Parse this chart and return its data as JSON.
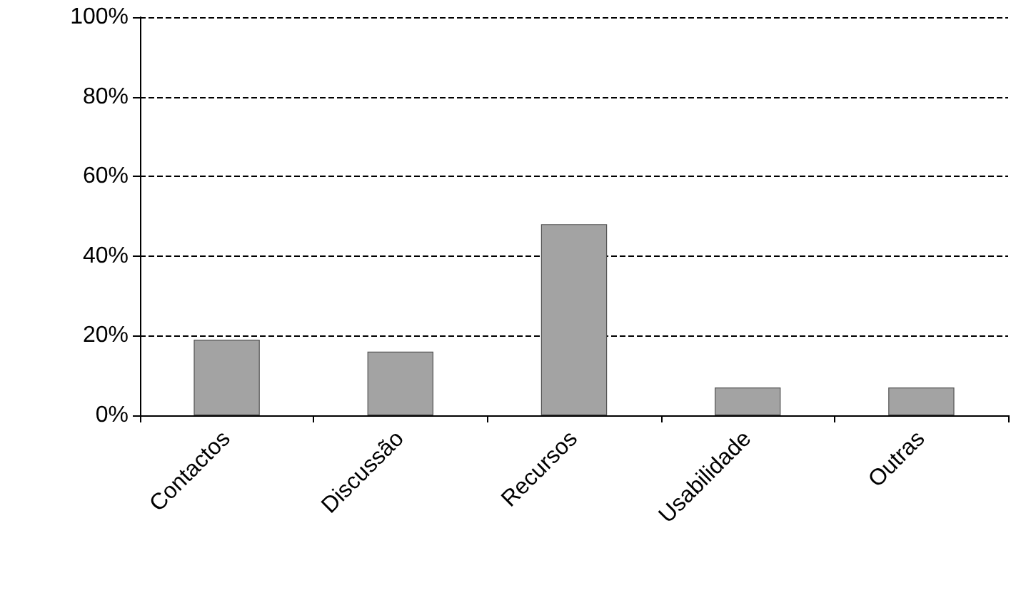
{
  "chart_data": {
    "type": "bar",
    "categories": [
      "Contactos",
      "Discussão",
      "Recursos",
      "Usabilidade",
      "Outras"
    ],
    "values": [
      19,
      16,
      48,
      7,
      7
    ],
    "color": "#a3a3a3",
    "ylim": [
      0,
      100
    ],
    "yticks": [
      {
        "value": 0,
        "label": "0%"
      },
      {
        "value": 20,
        "label": "20%"
      },
      {
        "value": 40,
        "label": "40%"
      },
      {
        "value": 60,
        "label": "60%"
      },
      {
        "value": 80,
        "label": "80%"
      },
      {
        "value": 100,
        "label": "100%"
      }
    ],
    "grid": "y",
    "line_style": "dashed"
  }
}
